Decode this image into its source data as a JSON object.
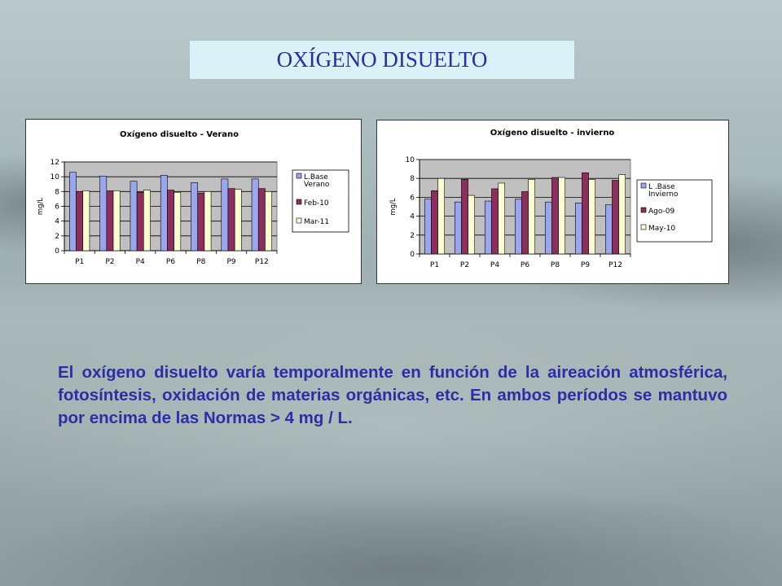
{
  "title": "OXÍGENO DISUELTO",
  "body_text": "El oxígeno disuelto varía temporalmente en función de la aireación atmosférica, fotosíntesis, oxidación de materias orgánicas, etc. En ambos períodos se mantuvo por encima de las Normas > 4 mg / L.",
  "colors": {
    "series1": "#9aa6ee",
    "series2": "#8e2e5c",
    "series3": "#fcfcd2",
    "plot_bg": "#c0c0c0",
    "title_bg": "#d9f1f7",
    "text_blue": "#2a2fa8"
  },
  "chart_data": [
    {
      "type": "bar",
      "title": "Oxígeno disuelto - Verano",
      "ylabel": "mg/L",
      "xlabel": "",
      "ylim": [
        0,
        12
      ],
      "yticks": [
        0,
        2,
        4,
        6,
        8,
        10,
        12
      ],
      "grid": true,
      "legend_position": "right",
      "categories": [
        "P1",
        "P2",
        "P4",
        "P6",
        "P8",
        "P9",
        "P12"
      ],
      "series": [
        {
          "name": "L.Base Verano",
          "legend_lines": [
            "L.Base",
            "Verano"
          ],
          "values": [
            10.6,
            10.1,
            9.4,
            10.2,
            9.2,
            9.7,
            9.7
          ]
        },
        {
          "name": "Feb-10",
          "legend_lines": [
            "Feb-10"
          ],
          "values": [
            8.0,
            8.1,
            7.9,
            8.2,
            7.8,
            8.4,
            8.4
          ]
        },
        {
          "name": "Mar-11",
          "legend_lines": [
            "Mar-11"
          ],
          "values": [
            8.1,
            8.1,
            8.2,
            7.9,
            8.0,
            8.3,
            8.0
          ]
        }
      ]
    },
    {
      "type": "bar",
      "title": "Oxígeno disuelto - invierno",
      "ylabel": "mg/L",
      "xlabel": "",
      "ylim": [
        0,
        10
      ],
      "yticks": [
        0,
        2,
        4,
        6,
        8,
        10
      ],
      "grid": true,
      "legend_position": "right",
      "categories": [
        "P1",
        "P2",
        "P4",
        "P6",
        "P8",
        "P9",
        "P12"
      ],
      "series": [
        {
          "name": "L .Base Invierno",
          "legend_lines": [
            "L .Base",
            "Invierno"
          ],
          "values": [
            5.8,
            5.5,
            5.6,
            5.8,
            5.5,
            5.4,
            5.2
          ]
        },
        {
          "name": "Ago-09",
          "legend_lines": [
            "Ago-09"
          ],
          "values": [
            6.7,
            7.9,
            6.9,
            6.6,
            8.1,
            8.6,
            7.8
          ]
        },
        {
          "name": "May-10",
          "legend_lines": [
            "May-10"
          ],
          "values": [
            8.0,
            6.2,
            7.5,
            7.9,
            8.1,
            7.9,
            8.4
          ]
        }
      ]
    }
  ]
}
